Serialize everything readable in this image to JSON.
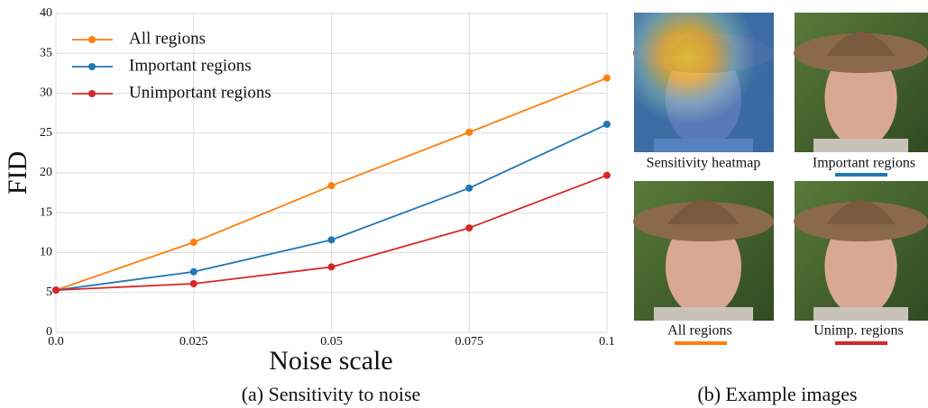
{
  "chart_data": {
    "type": "line",
    "x": [
      0,
      0.025,
      0.05,
      0.075,
      0.1
    ],
    "xlim": [
      0,
      0.1
    ],
    "xticks": [
      {
        "value": 0,
        "label": "0.0"
      },
      0.025,
      0.05,
      0.075,
      0.1
    ],
    "ylim": [
      0,
      40
    ],
    "yticks": [
      0,
      5,
      10,
      15,
      20,
      25,
      30,
      35,
      40
    ],
    "xlabel": "Noise scale",
    "ylabel": "FID",
    "grid": true,
    "legend": "upper left",
    "series": [
      {
        "name": "All regions",
        "color": "#ff7f0e",
        "values": [
          5.3,
          11.3,
          18.4,
          25.1,
          31.9
        ]
      },
      {
        "name": "Important regions",
        "color": "#1f77b4",
        "values": [
          5.3,
          7.6,
          11.6,
          18.1,
          26.1
        ]
      },
      {
        "name": "Unimportant regions",
        "color": "#d62728",
        "values": [
          5.3,
          6.1,
          8.2,
          13.1,
          19.7
        ]
      }
    ]
  },
  "captions": {
    "a": "(a) Sensitivity to noise",
    "b": "(b) Example images"
  },
  "images": [
    "Sensitivity heatmap",
    "Important regions",
    "All regions",
    "Unimp. regions"
  ]
}
